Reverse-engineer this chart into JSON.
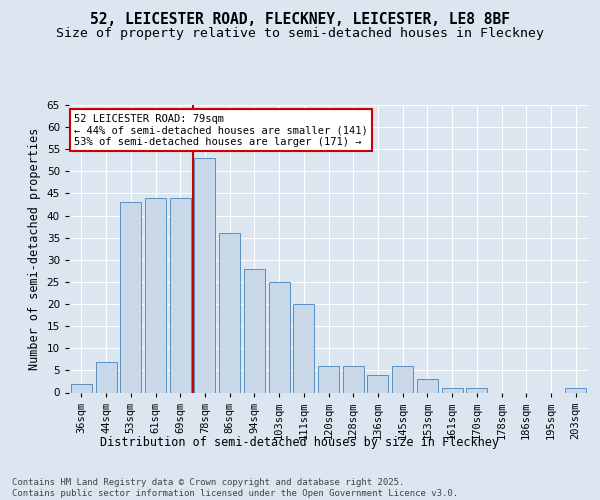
{
  "title1": "52, LEICESTER ROAD, FLECKNEY, LEICESTER, LE8 8BF",
  "title2": "Size of property relative to semi-detached houses in Fleckney",
  "xlabel": "Distribution of semi-detached houses by size in Fleckney",
  "ylabel": "Number of semi-detached properties",
  "categories": [
    "36sqm",
    "44sqm",
    "53sqm",
    "61sqm",
    "69sqm",
    "78sqm",
    "86sqm",
    "94sqm",
    "103sqm",
    "111sqm",
    "120sqm",
    "128sqm",
    "136sqm",
    "145sqm",
    "153sqm",
    "161sqm",
    "170sqm",
    "178sqm",
    "186sqm",
    "195sqm",
    "203sqm"
  ],
  "values": [
    2,
    7,
    43,
    44,
    44,
    53,
    36,
    28,
    25,
    20,
    6,
    6,
    4,
    6,
    3,
    1,
    1,
    0,
    0,
    0,
    1
  ],
  "bar_color": "#c8d8e8",
  "bar_edge_color": "#5a8fc0",
  "vline_x_idx": 5,
  "vline_color": "#cc0000",
  "annotation_text": "52 LEICESTER ROAD: 79sqm\n← 44% of semi-detached houses are smaller (141)\n53% of semi-detached houses are larger (171) →",
  "annotation_box_color": "#ffffff",
  "annotation_box_edge": "#cc0000",
  "ylim": [
    0,
    65
  ],
  "yticks": [
    0,
    5,
    10,
    15,
    20,
    25,
    30,
    35,
    40,
    45,
    50,
    55,
    60,
    65
  ],
  "background_color": "#dce6f0",
  "plot_bg_color": "#dce6f0",
  "footnote": "Contains HM Land Registry data © Crown copyright and database right 2025.\nContains public sector information licensed under the Open Government Licence v3.0.",
  "title_fontsize": 10.5,
  "subtitle_fontsize": 9.5,
  "axis_fontsize": 8.5,
  "tick_fontsize": 7.5,
  "annot_fontsize": 7.5,
  "footnote_fontsize": 6.5
}
